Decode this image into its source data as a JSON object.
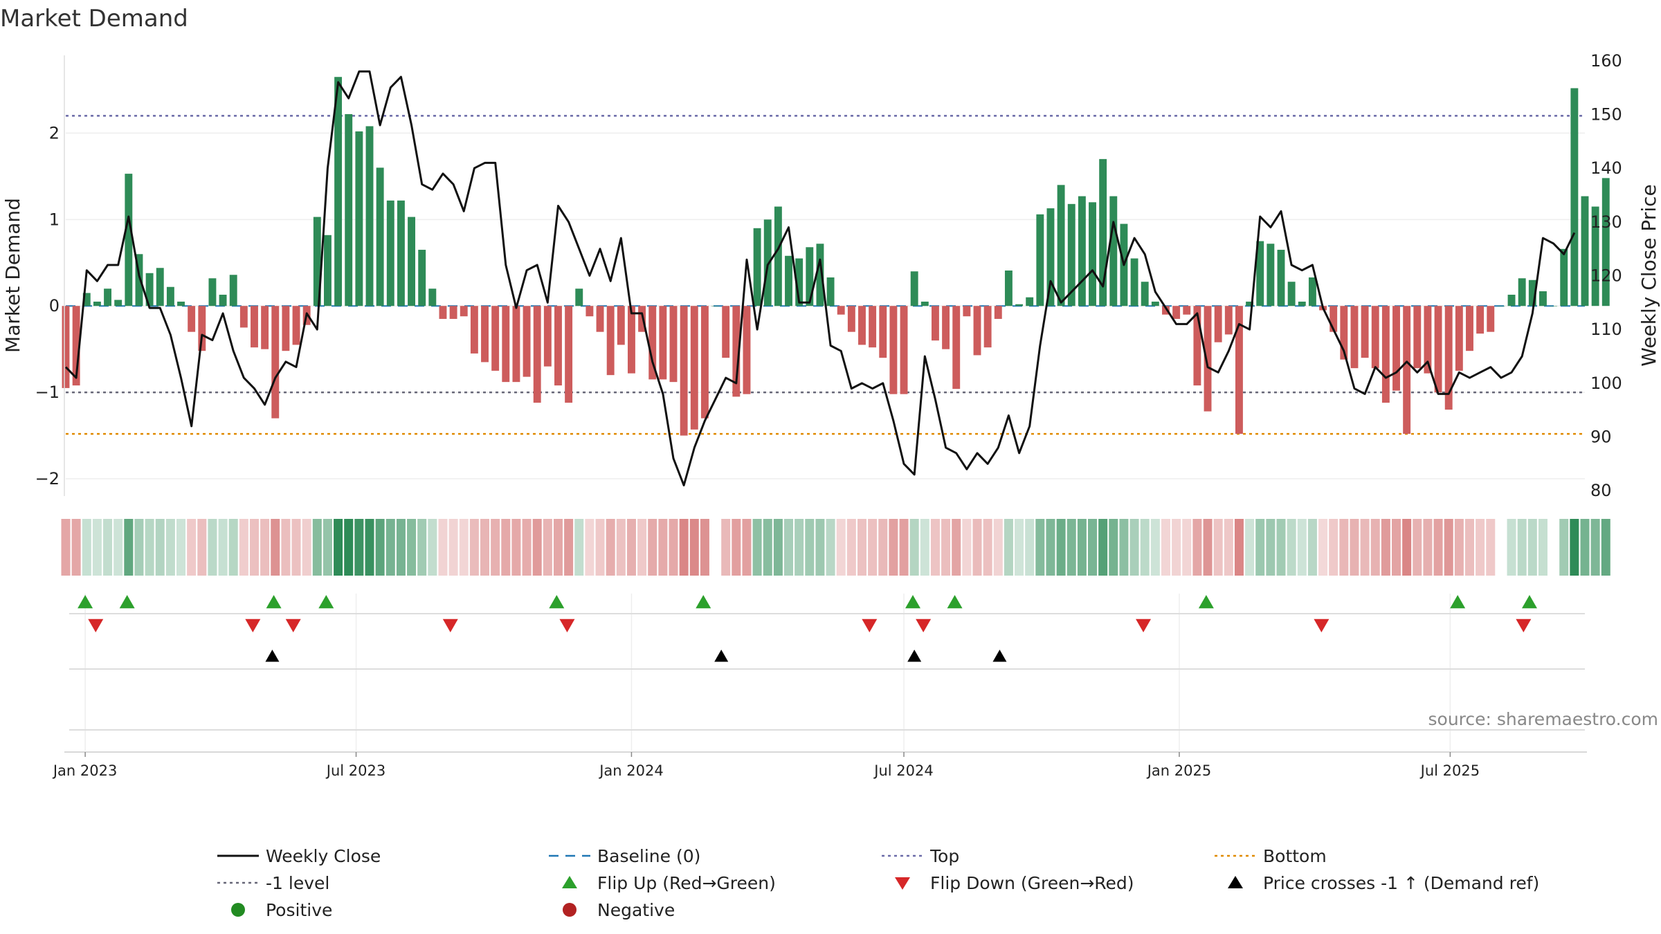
{
  "chart_data": {
    "type": "bar",
    "title": "Market Demand",
    "ylabel": "Market Demand",
    "y2label": "Weekly Close Price",
    "source": "source: sharemaestro.com",
    "ylim": [
      -2.2,
      2.9
    ],
    "y2lim": [
      79,
      161
    ],
    "yticks": [
      -2,
      -1,
      0,
      1,
      2
    ],
    "y2ticks": [
      80,
      90,
      100,
      110,
      120,
      130,
      140,
      150,
      160
    ],
    "top_level": 2.2,
    "minus1_level": -1,
    "bottom_level": -1.48,
    "x_range": [
      "2022-12-19",
      "2025-09-29"
    ],
    "x_ticks": [
      {
        "date": "2023-01-01",
        "label": "Jan 2023"
      },
      {
        "date": "2023-07-01",
        "label": "Jul 2023"
      },
      {
        "date": "2024-01-01",
        "label": "Jan 2024"
      },
      {
        "date": "2024-07-01",
        "label": "Jul 2024"
      },
      {
        "date": "2025-01-01",
        "label": "Jan 2025"
      },
      {
        "date": "2025-07-01",
        "label": "Jul 2025"
      }
    ],
    "weeks_start": "2022-12-19",
    "demand": [
      -0.95,
      -0.92,
      0.15,
      0.05,
      0.2,
      0.07,
      1.53,
      0.6,
      0.38,
      0.44,
      0.22,
      0.05,
      -0.3,
      -0.52,
      0.32,
      0.13,
      0.36,
      -0.25,
      -0.48,
      -0.5,
      -1.3,
      -0.52,
      -0.45,
      -0.22,
      1.03,
      0.82,
      2.65,
      2.22,
      2.02,
      2.08,
      1.6,
      1.22,
      1.22,
      1.03,
      0.65,
      0.2,
      -0.15,
      -0.15,
      -0.12,
      -0.55,
      -0.65,
      -0.75,
      -0.88,
      -0.88,
      -0.82,
      -1.12,
      -0.7,
      -0.92,
      -1.12,
      0.2,
      -0.12,
      -0.3,
      -0.8,
      -0.45,
      -0.78,
      -0.3,
      -0.85,
      -0.85,
      -0.88,
      -1.5,
      -1.43,
      -1.3,
      0.0,
      -0.6,
      -1.05,
      -1.02,
      0.9,
      1.0,
      1.15,
      0.58,
      0.55,
      0.68,
      0.72,
      0.33,
      -0.1,
      -0.3,
      -0.45,
      -0.48,
      -0.6,
      -1.02,
      -1.02,
      0.4,
      0.05,
      -0.4,
      -0.5,
      -0.96,
      -0.12,
      -0.57,
      -0.48,
      -0.15,
      0.41,
      0.02,
      0.1,
      1.06,
      1.13,
      1.4,
      1.18,
      1.27,
      1.2,
      1.7,
      1.27,
      0.95,
      0.55,
      0.28,
      0.05,
      -0.1,
      -0.15,
      -0.1,
      -0.92,
      -1.22,
      -0.42,
      -0.33,
      -1.48,
      0.05,
      0.75,
      0.72,
      0.65,
      0.28,
      0.05,
      0.33,
      -0.05,
      -0.3,
      -0.62,
      -0.72,
      -0.6,
      -0.72,
      -1.12,
      -0.98,
      -1.48,
      -0.72,
      -0.78,
      -1.0,
      -1.2,
      -0.75,
      -0.52,
      -0.32,
      -0.3,
      0.0,
      0.13,
      0.32,
      0.3,
      0.17,
      0.0,
      0.66,
      2.52,
      1.27,
      1.15,
      1.48
    ],
    "price": [
      103,
      101,
      121,
      119,
      122,
      122,
      131,
      120,
      114,
      114,
      109,
      101,
      92,
      109,
      108,
      113,
      106,
      101,
      99,
      96,
      101,
      104,
      103,
      113,
      110,
      140,
      156,
      153,
      158,
      158,
      148,
      155,
      157,
      148,
      137,
      136,
      139,
      137,
      132,
      140,
      141,
      141,
      122,
      114,
      121,
      122,
      115,
      133,
      130,
      125,
      120,
      125,
      119,
      127,
      113,
      113,
      104,
      98,
      86,
      81,
      88,
      93,
      97,
      101,
      100,
      123,
      110,
      122,
      125,
      129,
      115,
      115,
      123,
      107,
      106,
      99,
      100,
      99,
      100,
      93,
      85,
      83,
      105,
      97,
      88,
      87,
      84,
      87,
      85,
      88,
      94,
      87,
      92,
      107,
      119,
      115,
      117,
      119,
      121,
      118,
      130,
      122,
      127,
      124,
      117,
      114,
      111,
      111,
      113,
      103,
      102,
      106,
      111,
      110,
      131,
      129,
      132,
      122,
      121,
      122,
      114,
      110,
      106,
      99,
      98,
      103,
      101,
      102,
      104,
      102,
      104,
      98,
      98,
      102,
      101,
      102,
      103,
      101,
      102,
      105,
      113,
      127,
      126,
      124,
      128
    ],
    "flip_up": [
      "2023-01-01",
      "2023-01-29",
      "2023-05-07",
      "2023-06-11",
      "2023-11-12",
      "2024-02-18",
      "2024-07-07",
      "2024-08-04",
      "2025-01-19",
      "2025-07-06",
      "2025-08-23"
    ],
    "flip_down": [
      "2023-01-08",
      "2023-04-23",
      "2023-05-20",
      "2023-09-02",
      "2023-11-19",
      "2024-06-08",
      "2024-07-14",
      "2024-12-08",
      "2025-04-06",
      "2025-08-19"
    ],
    "price_cross_up": [
      "2023-05-06",
      "2024-03-01",
      "2024-07-08",
      "2024-09-03"
    ],
    "legend": [
      {
        "key": "close",
        "label": "Weekly Close"
      },
      {
        "key": "baseline",
        "label": "Baseline (0)"
      },
      {
        "key": "top",
        "label": "Top"
      },
      {
        "key": "bottom",
        "label": "Bottom"
      },
      {
        "key": "minus1",
        "label": "-1 level"
      },
      {
        "key": "flipup",
        "label": "Flip Up (Red→Green)"
      },
      {
        "key": "flipdown",
        "label": "Flip Down (Green→Red)"
      },
      {
        "key": "cross",
        "label": "Price crosses -1 ↑ (Demand ref)"
      },
      {
        "key": "positive",
        "label": "Positive"
      },
      {
        "key": "negative",
        "label": "Negative"
      }
    ],
    "colors": {
      "positive": "#2e8b57",
      "negative": "#cd5c5c",
      "close": "#111111",
      "baseline": "#1f77b4",
      "top": "#6a6aa8",
      "minus1": "#666677",
      "bottom": "#e08a00",
      "flipup": "#2ca02c",
      "flipdown": "#d62728",
      "cross": "#000000",
      "positive_dot": "#228b22",
      "negative_dot": "#b22222"
    }
  }
}
